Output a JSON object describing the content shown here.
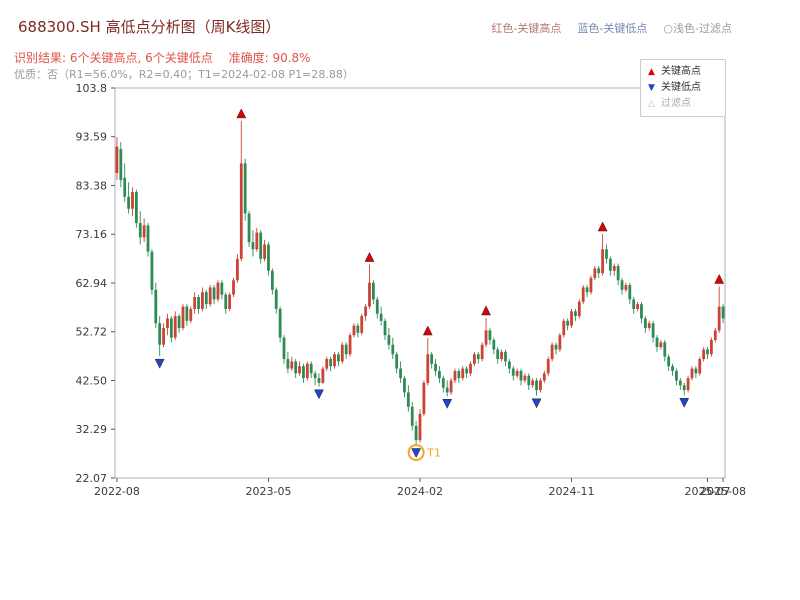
{
  "header": {
    "title": "688300.SH 高低点分析图（周K线图）",
    "top_legend": [
      {
        "label": "红色-关键高点",
        "color": "#b3766f"
      },
      {
        "label": "蓝色-关键低点",
        "color": "#7b87b8"
      },
      {
        "label": "○浅色-过滤点",
        "color": "#9a9a9a"
      }
    ],
    "result_line": "识别结果: 6个关键高点, 6个关键低点",
    "accuracy": "准确度: 90.8%",
    "quality_line": "优质：否（R1=56.0%，R2=0.40；T1=2024-02-08 P1=28.88）"
  },
  "legend_box": {
    "items": [
      {
        "label": "关键高点",
        "marker": "▲",
        "color": "#e00000"
      },
      {
        "label": "关键低点",
        "marker": "▼",
        "color": "#2244cc"
      },
      {
        "label": "过滤点",
        "marker": "△",
        "color": "#bbbbbb"
      }
    ]
  },
  "chart_data": {
    "type": "candlestick",
    "symbol": "688300.SH",
    "frequency": "weekly",
    "title": "688300.SH 高低点分析图（周K线图）",
    "ylim": [
      22.07,
      103.8
    ],
    "yticks": [
      "103.8",
      "93.59",
      "83.38",
      "73.16",
      "62.94",
      "52.72",
      "42.50",
      "32.29",
      "22.07"
    ],
    "ytick_values": [
      103.8,
      93.59,
      83.38,
      73.16,
      62.94,
      52.72,
      42.5,
      32.29,
      22.07
    ],
    "xticks": [
      {
        "label": "2022-08",
        "week": 0
      },
      {
        "label": "2023-05",
        "week": 39
      },
      {
        "label": "2024-02",
        "week": 78
      },
      {
        "label": "2024-11",
        "week": 117
      },
      {
        "label": "2025-07",
        "week": 152
      },
      {
        "label": "2025-08",
        "week": 156
      }
    ],
    "colors": {
      "up": "#cb4335",
      "down": "#2e8b57",
      "key_high": "#e00000",
      "key_low": "#2244cc",
      "t1": "#f5a623"
    },
    "candles": [
      [
        86,
        93.5,
        84.5,
        91.5
      ],
      [
        91,
        92.5,
        83,
        84.5
      ],
      [
        85,
        88,
        80,
        81
      ],
      [
        81,
        84,
        77.5,
        78.5
      ],
      [
        78.5,
        83,
        77,
        82
      ],
      [
        82,
        82.5,
        74.5,
        75.5
      ],
      [
        75.5,
        78,
        71,
        72.5
      ],
      [
        72.5,
        76.5,
        71.5,
        75
      ],
      [
        75,
        75.5,
        68.5,
        69.5
      ],
      [
        69.5,
        70,
        60.5,
        61.5
      ],
      [
        61.5,
        63,
        53.5,
        54.5
      ],
      [
        54.5,
        56,
        47.6,
        50
      ],
      [
        50,
        54.5,
        49.5,
        53.5
      ],
      [
        53.5,
        56.5,
        52,
        55.5
      ],
      [
        55.5,
        56,
        50.5,
        51.5
      ],
      [
        51.5,
        57,
        51,
        56
      ],
      [
        56,
        56.5,
        52.5,
        53.5
      ],
      [
        53.5,
        58.5,
        53,
        58
      ],
      [
        58,
        58.5,
        54,
        55
      ],
      [
        55,
        58,
        54.5,
        57.5
      ],
      [
        57.5,
        61,
        56.5,
        60
      ],
      [
        60,
        60.5,
        56.5,
        57.5
      ],
      [
        57.5,
        62,
        57,
        61
      ],
      [
        61,
        61.5,
        57.5,
        58.5
      ],
      [
        58.5,
        62.5,
        58,
        62
      ],
      [
        62,
        62.5,
        58.5,
        59.5
      ],
      [
        59.5,
        63.5,
        59,
        63
      ],
      [
        63,
        63.5,
        59.5,
        60.5
      ],
      [
        60.5,
        61,
        56.5,
        57.5
      ],
      [
        57.5,
        61,
        57,
        60.5
      ],
      [
        60.5,
        64,
        60,
        63.5
      ],
      [
        63.5,
        69,
        63,
        68
      ],
      [
        68,
        96.9,
        67.5,
        88
      ],
      [
        88,
        89,
        76,
        77.5
      ],
      [
        77.5,
        78,
        70.5,
        71.5
      ],
      [
        71.5,
        74,
        68.5,
        70
      ],
      [
        70,
        74.5,
        69.5,
        73.5
      ],
      [
        73.5,
        74,
        67,
        68
      ],
      [
        68,
        72,
        67.5,
        71
      ],
      [
        71,
        71.5,
        64.5,
        65.5
      ],
      [
        65.5,
        66,
        60.5,
        61.5
      ],
      [
        61.5,
        62,
        56.5,
        57.5
      ],
      [
        57.5,
        58,
        50.5,
        51.5
      ],
      [
        51.5,
        52,
        46,
        47
      ],
      [
        47,
        48.5,
        44,
        45
      ],
      [
        45,
        47.5,
        44.5,
        46.5
      ],
      [
        46.5,
        47,
        43,
        44
      ],
      [
        44,
        46.5,
        43.5,
        45.5
      ],
      [
        45.5,
        46,
        42,
        43
      ],
      [
        43,
        46.5,
        42.5,
        46
      ],
      [
        46,
        46.5,
        43,
        44
      ],
      [
        44,
        44.5,
        41.5,
        43
      ],
      [
        43,
        44,
        41.2,
        42
      ],
      [
        42,
        45.5,
        41.8,
        45
      ],
      [
        45,
        47.5,
        44.5,
        47
      ],
      [
        47,
        47.5,
        44.5,
        45.5
      ],
      [
        45.5,
        48.5,
        45,
        48
      ],
      [
        48,
        48.5,
        45.5,
        46.5
      ],
      [
        46.5,
        50.5,
        46,
        50
      ],
      [
        50,
        50.5,
        47,
        48
      ],
      [
        48,
        52.5,
        47.5,
        52
      ],
      [
        52,
        54.5,
        51.5,
        54
      ],
      [
        54,
        54.5,
        51.5,
        52.5
      ],
      [
        52.5,
        56.5,
        52,
        56
      ],
      [
        56,
        58.5,
        55,
        58
      ],
      [
        58,
        66.8,
        57.5,
        63
      ],
      [
        63,
        63.5,
        58.5,
        59.5
      ],
      [
        59.5,
        60,
        55.5,
        56.5
      ],
      [
        56.5,
        58,
        54,
        55
      ],
      [
        55,
        55.5,
        51,
        52
      ],
      [
        52,
        53.5,
        49,
        50
      ],
      [
        50,
        51.5,
        47,
        48
      ],
      [
        48,
        48.5,
        44,
        45
      ],
      [
        45,
        46.5,
        42,
        43
      ],
      [
        43,
        43.5,
        39,
        40
      ],
      [
        40,
        41.5,
        36,
        37
      ],
      [
        37,
        38,
        32,
        33
      ],
      [
        33,
        34,
        28.88,
        30
      ],
      [
        30,
        36.5,
        29.5,
        35.5
      ],
      [
        35.5,
        42.5,
        35,
        42
      ],
      [
        42,
        51.4,
        41.5,
        48
      ],
      [
        48,
        48.5,
        45,
        46
      ],
      [
        46,
        47,
        43.5,
        44.5
      ],
      [
        44.5,
        45.5,
        42,
        43
      ],
      [
        43,
        43.5,
        40,
        41
      ],
      [
        41,
        42.5,
        39.2,
        40
      ],
      [
        40,
        43,
        39.5,
        42.5
      ],
      [
        42.5,
        45,
        42,
        44.5
      ],
      [
        44.5,
        45,
        42,
        43
      ],
      [
        43,
        45.5,
        42.5,
        45
      ],
      [
        45,
        45.5,
        43,
        44
      ],
      [
        44,
        46.5,
        43.5,
        46
      ],
      [
        46,
        48.5,
        45.5,
        48
      ],
      [
        48,
        48.5,
        46,
        47
      ],
      [
        47,
        50.5,
        46.5,
        50
      ],
      [
        50,
        55.6,
        49.5,
        53
      ],
      [
        53,
        53.5,
        50,
        51
      ],
      [
        51,
        51.5,
        48,
        49
      ],
      [
        49,
        49.5,
        46,
        47
      ],
      [
        47,
        49,
        46.5,
        48.5
      ],
      [
        48.5,
        49,
        45.5,
        46.5
      ],
      [
        46.5,
        47,
        44,
        45
      ],
      [
        45,
        45.5,
        42.5,
        43.5
      ],
      [
        43.5,
        45,
        43,
        44.5
      ],
      [
        44.5,
        45,
        41.5,
        42.5
      ],
      [
        42.5,
        44,
        42,
        43.5
      ],
      [
        43.5,
        44,
        40.5,
        41.5
      ],
      [
        41.5,
        43,
        41,
        42.5
      ],
      [
        42.5,
        43,
        39.3,
        40.5
      ],
      [
        40.5,
        43,
        40,
        42.5
      ],
      [
        42.5,
        44.5,
        42,
        44
      ],
      [
        44,
        47.5,
        43.5,
        47
      ],
      [
        47,
        50.5,
        46.5,
        50
      ],
      [
        50,
        50.5,
        48,
        49
      ],
      [
        49,
        52.5,
        48.5,
        52
      ],
      [
        52,
        55.5,
        51.5,
        55
      ],
      [
        55,
        55.5,
        53,
        54
      ],
      [
        54,
        57.5,
        53.5,
        57
      ],
      [
        57,
        57.5,
        55,
        56
      ],
      [
        56,
        59.5,
        55.5,
        59
      ],
      [
        59,
        62.5,
        58.5,
        62
      ],
      [
        62,
        62.5,
        60,
        61
      ],
      [
        61,
        64.5,
        60.5,
        64
      ],
      [
        64,
        66.5,
        63.5,
        66
      ],
      [
        66,
        66.5,
        64,
        65
      ],
      [
        65,
        73.2,
        64.5,
        70
      ],
      [
        70,
        71,
        67,
        68
      ],
      [
        68,
        68.5,
        64.5,
        65.5
      ],
      [
        65.5,
        67,
        64.5,
        66.5
      ],
      [
        66.5,
        67,
        62.5,
        63.5
      ],
      [
        63.5,
        64,
        60.5,
        61.5
      ],
      [
        61.5,
        63,
        61,
        62.5
      ],
      [
        62.5,
        63,
        58.5,
        59.5
      ],
      [
        59.5,
        60,
        56.5,
        57.5
      ],
      [
        57.5,
        59,
        57,
        58.5
      ],
      [
        58.5,
        59,
        54.5,
        55.5
      ],
      [
        55.5,
        56,
        52.5,
        53.5
      ],
      [
        53.5,
        55,
        53,
        54.5
      ],
      [
        54.5,
        55,
        50.5,
        51.5
      ],
      [
        51.5,
        52,
        48.5,
        49.5
      ],
      [
        49.5,
        51,
        49,
        50.5
      ],
      [
        50.5,
        51,
        46.5,
        47.5
      ],
      [
        47.5,
        48,
        44.5,
        45.5
      ],
      [
        45.5,
        46,
        43.5,
        44.5
      ],
      [
        44.5,
        45,
        41.5,
        42.5
      ],
      [
        42.5,
        43,
        40.5,
        41.5
      ],
      [
        41.5,
        42,
        39.4,
        40.5
      ],
      [
        40.5,
        43.5,
        40,
        43
      ],
      [
        43,
        45.5,
        42.5,
        45
      ],
      [
        45,
        45.5,
        43,
        44
      ],
      [
        44,
        47.5,
        43.5,
        47
      ],
      [
        47,
        49.5,
        46.5,
        49
      ],
      [
        49,
        49.5,
        47,
        48
      ],
      [
        48,
        51.5,
        47.5,
        51
      ],
      [
        51,
        53.5,
        50.5,
        53
      ],
      [
        53,
        62.2,
        52.5,
        58
      ],
      [
        58,
        58.5,
        54.5,
        55.5
      ]
    ],
    "key_highs": [
      {
        "week": 32,
        "price": 96.9
      },
      {
        "week": 65,
        "price": 66.8
      },
      {
        "week": 80,
        "price": 51.4
      },
      {
        "week": 95,
        "price": 55.6
      },
      {
        "week": 125,
        "price": 73.2
      },
      {
        "week": 155,
        "price": 62.2
      }
    ],
    "key_lows": [
      {
        "week": 11,
        "price": 47.6
      },
      {
        "week": 52,
        "price": 41.2
      },
      {
        "week": 77,
        "price": 28.88
      },
      {
        "week": 85,
        "price": 39.2
      },
      {
        "week": 108,
        "price": 39.3
      },
      {
        "week": 146,
        "price": 39.4
      }
    ],
    "t1": {
      "week": 77,
      "price": 28.88,
      "label": "T1",
      "date": "2024-02-08"
    }
  }
}
